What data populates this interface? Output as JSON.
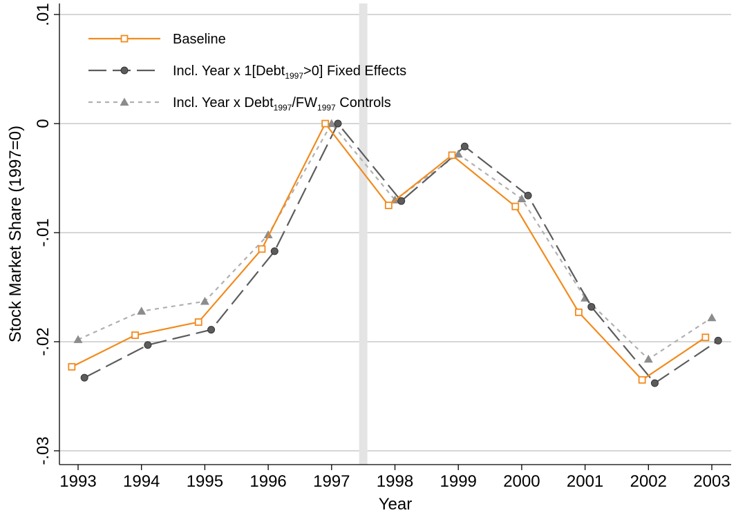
{
  "chart_data": {
    "type": "line",
    "title": "",
    "xlabel": "Year",
    "ylabel": "Stock Market Share (1997=0)",
    "x": [
      1993,
      1994,
      1995,
      1996,
      1997,
      1998,
      1999,
      2000,
      2001,
      2002,
      2003
    ],
    "x_tick_labels": [
      "1993",
      "1994",
      "1995",
      "1996",
      "1997",
      "1998",
      "1999",
      "2000",
      "2001",
      "2002",
      "2003"
    ],
    "ylim": [
      -0.031,
      0.0105
    ],
    "xlim": [
      1992.6,
      2003.4
    ],
    "y_ticks": [
      0.01,
      0,
      -0.01,
      -0.02,
      -0.03
    ],
    "y_tick_labels": [
      ".01",
      "0",
      "-.01",
      "-.02",
      "-.03"
    ],
    "grid": true,
    "reference_band_x": 1997.5,
    "legend_position": "top-left",
    "series": [
      {
        "name": "Baseline",
        "color": "#f28a1c",
        "marker": "hollow-square",
        "line_style": "solid",
        "x_offset": -0.1,
        "values": [
          -0.0223,
          -0.0194,
          -0.0182,
          -0.0115,
          0.0,
          -0.0075,
          -0.0029,
          -0.0076,
          -0.0173,
          -0.0235,
          -0.0196
        ]
      },
      {
        "name_parts": [
          "Incl. Year x 1[Debt",
          "1997",
          ">0] Fixed Effects"
        ],
        "color": "#5c5c5c",
        "marker": "circle",
        "line_style": "long-dash",
        "x_offset": 0.1,
        "values": [
          -0.0233,
          -0.0203,
          -0.0189,
          -0.0117,
          0.0,
          -0.0071,
          -0.0021,
          -0.0066,
          -0.0168,
          -0.0238,
          -0.0199
        ]
      },
      {
        "name_parts": [
          "Incl. Year x Debt",
          "1997",
          "/FW",
          "1997",
          " Controls"
        ],
        "color": "#8c8c8c",
        "line_color": "#b0b0b0",
        "marker": "triangle",
        "line_style": "short-dash",
        "x_offset": 0.0,
        "values": [
          -0.0198,
          -0.0172,
          -0.0163,
          -0.0102,
          0.0,
          -0.007,
          -0.0028,
          -0.0069,
          -0.016,
          -0.0216,
          -0.0178
        ]
      }
    ]
  }
}
